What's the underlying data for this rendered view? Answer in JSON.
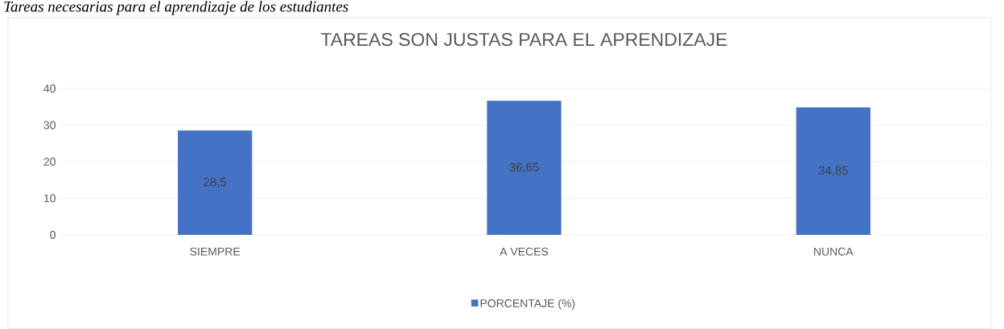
{
  "chart_data": {
    "type": "bar",
    "title": "TAREAS SON JUSTAS PARA EL APRENDIZAJE",
    "annotations": [
      "Tareas necesarias para el aprendizaje de los estudiantes"
    ],
    "categories": [
      "SIEMPRE",
      "A VECES",
      "NUNCA"
    ],
    "series": [
      {
        "name": "PORCENTAJE (%)",
        "color": "#4472c4",
        "values": [
          28.5,
          36.65,
          34.85
        ],
        "value_labels": [
          "28,5",
          "36,65",
          "34,85"
        ]
      }
    ],
    "ylim": [
      0,
      40
    ],
    "yticks": [
      0,
      10,
      20,
      30,
      40
    ],
    "grid": "y",
    "legend": "bottom"
  }
}
